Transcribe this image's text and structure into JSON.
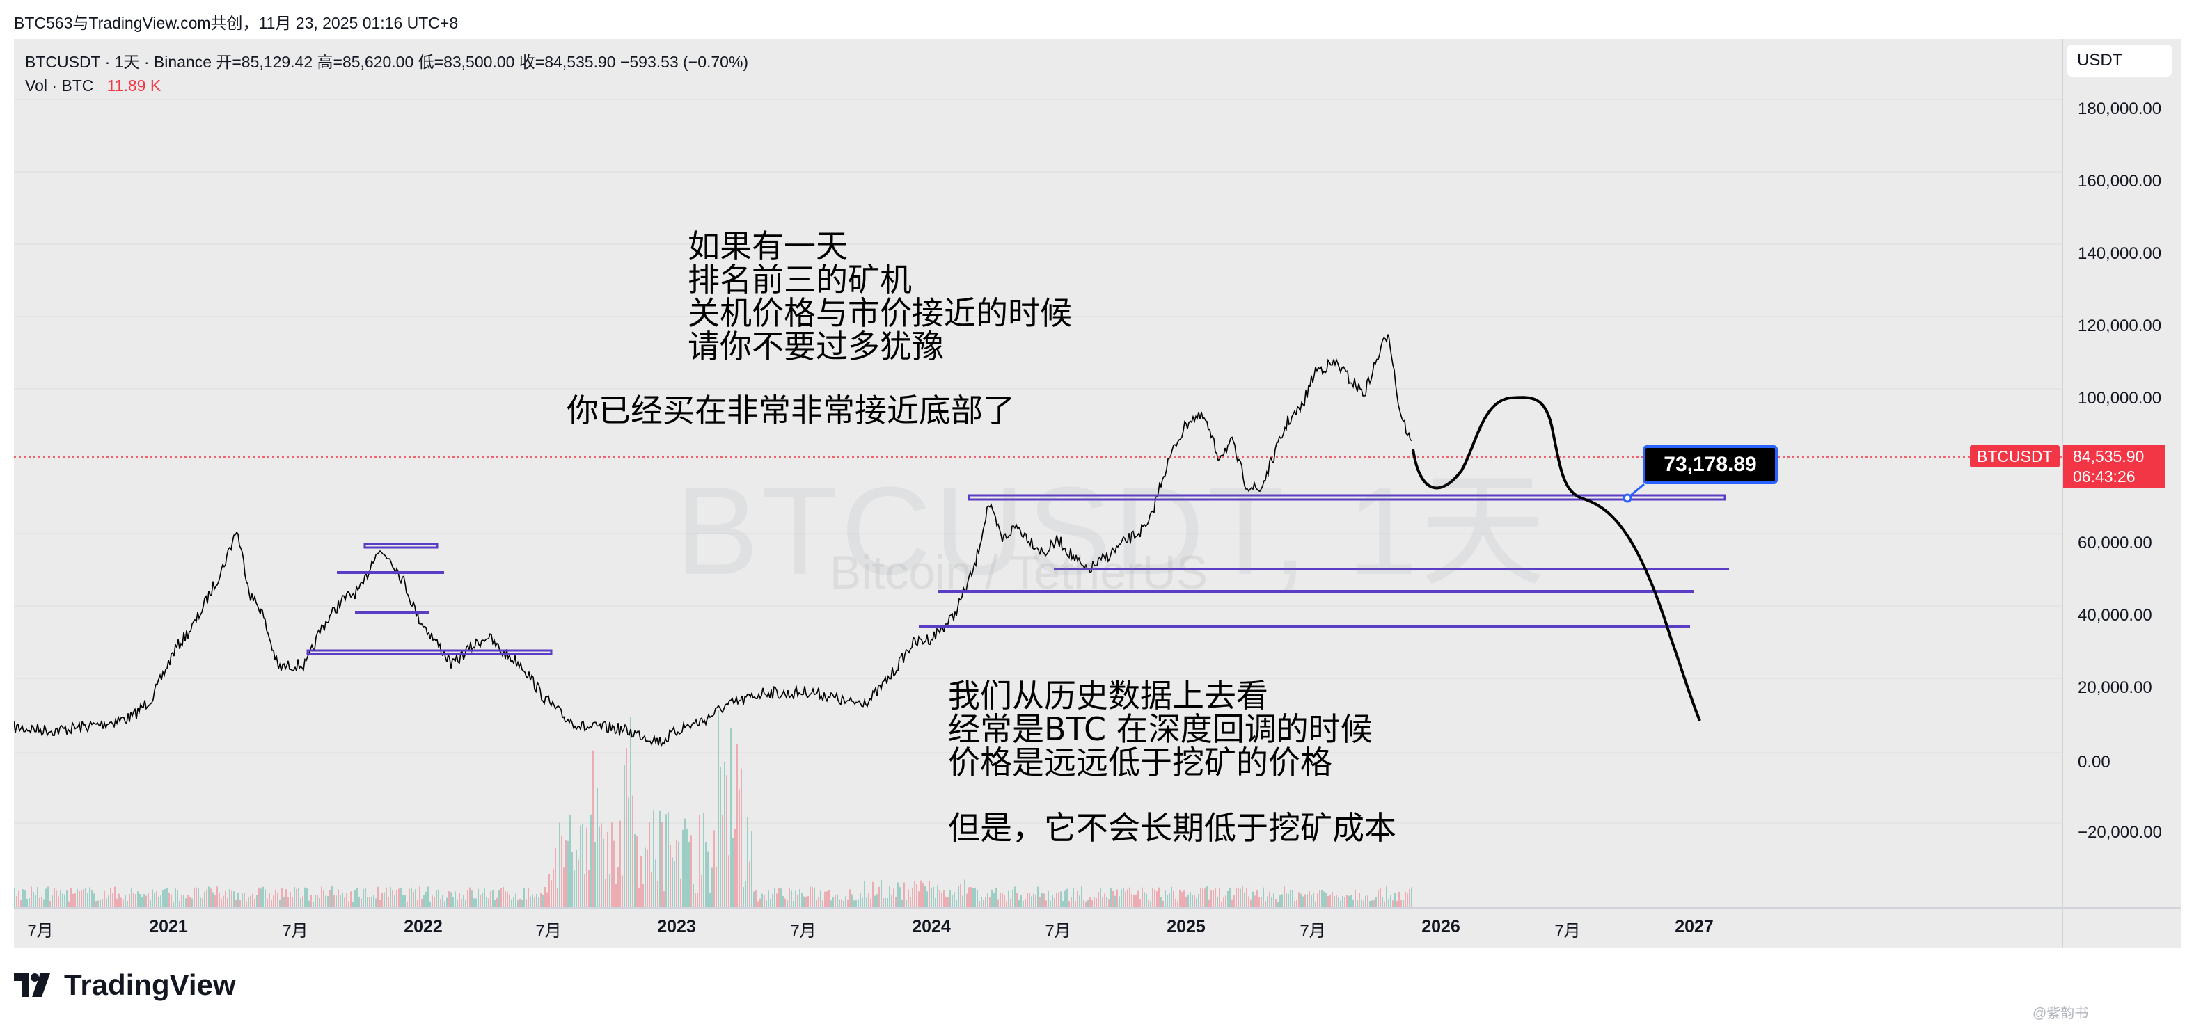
{
  "header": {
    "title": "BTC563与TradingView.com共创，11月 23, 2025 01:16 UTC+8"
  },
  "legend": {
    "symbol_line": "BTCUSDT · 1天 · Binance  开=85,129.42  高=85,620.00  低=83,500.00  收=84,535.90  −593.53 (−0.70%)",
    "vol_label": "Vol · BTC",
    "vol_value": "11.89 K"
  },
  "watermark": {
    "symbol": "BTCUSDT, 1天",
    "description": "Bitcoin / TetherUS"
  },
  "price_scale": {
    "currency": "USDT",
    "labels": [
      "180,000.00",
      "160,000.00",
      "140,000.00",
      "120,000.00",
      "100,000.00",
      "60,000.00",
      "40,000.00",
      "20,000.00",
      "0.00",
      "−20,000.00"
    ],
    "current_tag": "BTCUSDT",
    "current_price": "84,535.90",
    "countdown": "06:43:26"
  },
  "time_axis": {
    "labels": [
      {
        "text": "7月",
        "type": "month"
      },
      {
        "text": "2021",
        "type": "year"
      },
      {
        "text": "7月",
        "type": "month"
      },
      {
        "text": "2022",
        "type": "year"
      },
      {
        "text": "7月",
        "type": "month"
      },
      {
        "text": "2023",
        "type": "year"
      },
      {
        "text": "7月",
        "type": "month"
      },
      {
        "text": "2024",
        "type": "year"
      },
      {
        "text": "7月",
        "type": "month"
      },
      {
        "text": "2025",
        "type": "year"
      },
      {
        "text": "7月",
        "type": "month"
      },
      {
        "text": "2026",
        "type": "year"
      },
      {
        "text": "7月",
        "type": "month"
      },
      {
        "text": "2027",
        "type": "year"
      }
    ]
  },
  "annotations": {
    "note1": "如果有一天\n排名前三的矿机\n关机价格与市价接近的时候\n请你不要过多犹豫",
    "note2": "你已经买在非常非常接近底部了",
    "note3": "我们从历史数据上去看\n经常是BTC 在深度回调的时候\n价格是远远低于挖矿的价格",
    "note4": "但是，它不会长期低于挖矿成本",
    "target_price": "73,178.89"
  },
  "footer": {
    "logo_text": "TradingView",
    "watermark_text": "@紫韵书"
  },
  "colors": {
    "down": "#f23645",
    "accent": "#2962ff",
    "level_line": "#5b3cc4",
    "background": "#ebebeb"
  }
}
